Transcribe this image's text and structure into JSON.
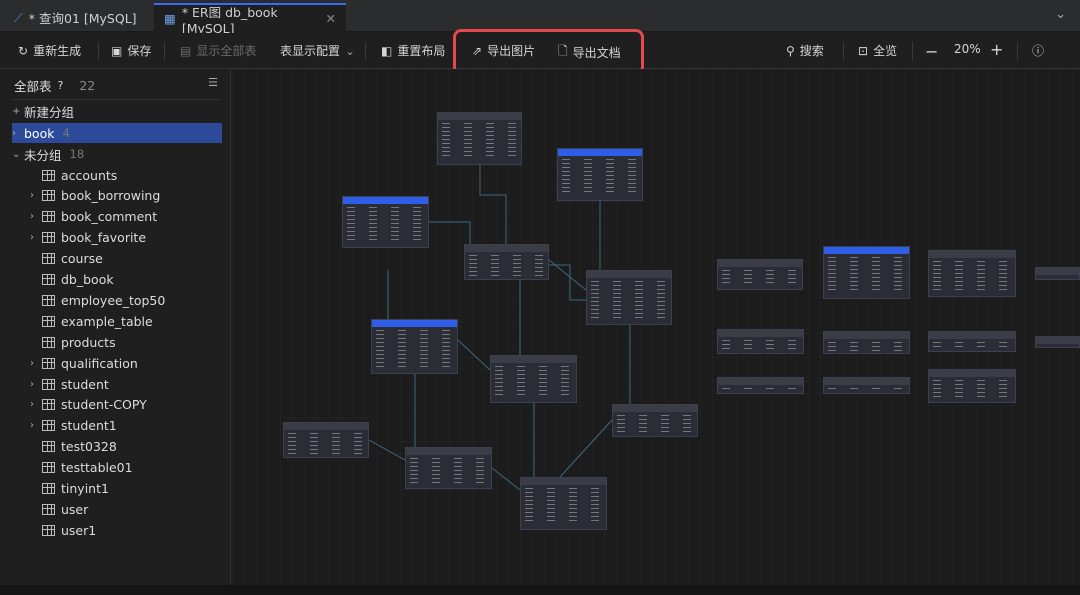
{
  "tabs": [
    {
      "label": "* 查询01 [MySQL]",
      "icon": "mysql-dolphin-icon"
    },
    {
      "label": "* ER图 db_book [MySQL]",
      "icon": "er-diagram-icon",
      "active": true
    }
  ],
  "toolbar": {
    "regenerate": "重新生成",
    "save": "保存",
    "show_all": "显示全部表",
    "display_config": "表显示配置",
    "reset_layout": "重置布局",
    "export_image": "导出图片",
    "export_doc": "导出文档",
    "search": "搜索",
    "overview": "全览",
    "zoom": "20%"
  },
  "sidebar": {
    "title": "全部表",
    "count": "22",
    "new_group": "新建分组",
    "groups": [
      {
        "label": "book",
        "count": "4"
      },
      {
        "label": "未分组",
        "count": "18"
      }
    ],
    "tables": [
      {
        "name": "accounts",
        "exp": false
      },
      {
        "name": "book_borrowing",
        "exp": true
      },
      {
        "name": "book_comment",
        "exp": true
      },
      {
        "name": "book_favorite",
        "exp": true
      },
      {
        "name": "course",
        "exp": false
      },
      {
        "name": "db_book",
        "exp": false
      },
      {
        "name": "employee_top50",
        "exp": false
      },
      {
        "name": "example_table",
        "exp": false
      },
      {
        "name": "products",
        "exp": false
      },
      {
        "name": "qualification",
        "exp": true
      },
      {
        "name": "student",
        "exp": true
      },
      {
        "name": "student-COPY",
        "exp": true
      },
      {
        "name": "student1",
        "exp": true
      },
      {
        "name": "test0328",
        "exp": false
      },
      {
        "name": "testtable01",
        "exp": false
      },
      {
        "name": "tinyint1",
        "exp": false
      },
      {
        "name": "user",
        "exp": false
      },
      {
        "name": "user1",
        "exp": false
      }
    ]
  },
  "colors": {
    "accent": "#2f5ee8",
    "highlight": "#e5484d",
    "selected": "#2d4a9a"
  }
}
